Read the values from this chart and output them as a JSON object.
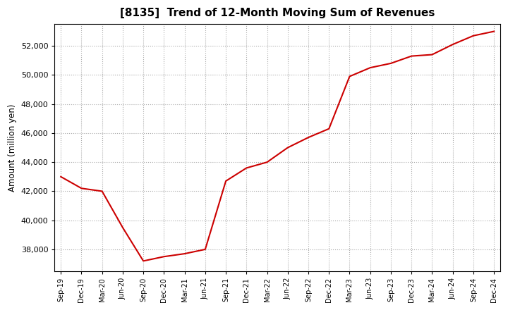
{
  "title": "[8135]  Trend of 12-Month Moving Sum of Revenues",
  "ylabel": "Amount (million yen)",
  "line_color": "#cc0000",
  "background_color": "#ffffff",
  "plot_bg_color": "#ffffff",
  "grid_color": "#aaaaaa",
  "ylim": [
    36500,
    53500
  ],
  "yticks": [
    38000,
    40000,
    42000,
    44000,
    46000,
    48000,
    50000,
    52000
  ],
  "x_labels": [
    "Sep-19",
    "Dec-19",
    "Mar-20",
    "Jun-20",
    "Sep-20",
    "Dec-20",
    "Mar-21",
    "Jun-21",
    "Sep-21",
    "Dec-21",
    "Mar-22",
    "Jun-22",
    "Sep-22",
    "Dec-22",
    "Mar-23",
    "Jun-23",
    "Sep-23",
    "Dec-23",
    "Mar-24",
    "Jun-24",
    "Sep-24",
    "Dec-24"
  ],
  "values": [
    43000,
    42200,
    42000,
    39500,
    37200,
    37500,
    37700,
    38000,
    42700,
    43600,
    44000,
    45000,
    45700,
    46300,
    49900,
    50500,
    50800,
    51300,
    51400,
    52100,
    52700,
    53000
  ]
}
